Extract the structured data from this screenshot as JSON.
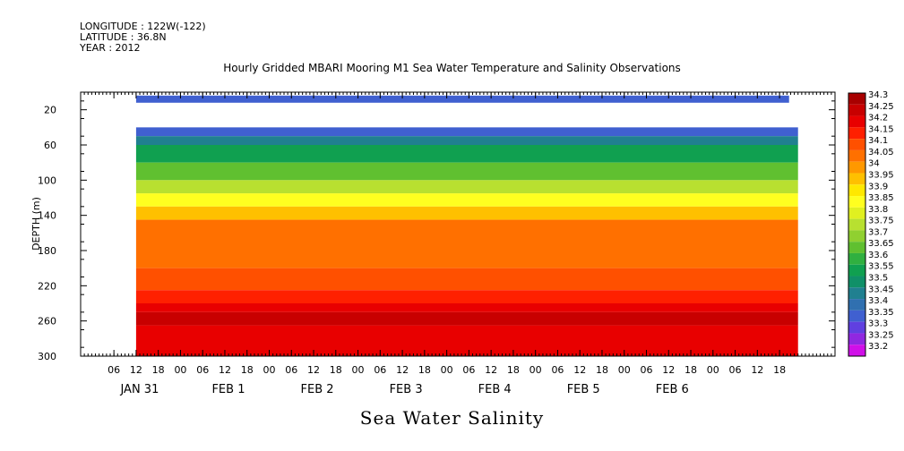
{
  "meta": {
    "longitude": "LONGITUDE : 122W(-122)",
    "latitude": "LATITUDE : 36.8N",
    "year": "YEAR : 2012"
  },
  "chart_data": {
    "type": "heatmap",
    "title": "Hourly Gridded MBARI Mooring M1 Sea Water Temperature and Salinity Observations",
    "bottom_title": "Sea Water Salinity",
    "ylabel": "DEPTH (m)",
    "ylim": [
      300,
      0
    ],
    "y_ticks": [
      20,
      60,
      100,
      140,
      180,
      220,
      260,
      300
    ],
    "x_tick_labels": [
      "06",
      "12",
      "18",
      "00",
      "06",
      "12",
      "18",
      "00",
      "06",
      "12",
      "18",
      "00",
      "06",
      "12",
      "18",
      "00",
      "06",
      "12",
      "18",
      "00",
      "06",
      "12",
      "18",
      "00",
      "06",
      "12",
      "18",
      "00",
      "06",
      "12",
      "18"
    ],
    "day_labels": [
      "JAN 31",
      "FEB  1",
      "FEB  2",
      "FEB  3",
      "FEB  4",
      "FEB  5",
      "FEB  6"
    ],
    "time_hours_from_jan31_00": [
      12,
      191
    ],
    "colorbar": {
      "levels": [
        "34.3",
        "34.25",
        "34.2",
        "34.15",
        "34.1",
        "34.05",
        "34",
        "33.95",
        "33.9",
        "33.85",
        "33.8",
        "33.75",
        "33.7",
        "33.65",
        "33.6",
        "33.55",
        "33.5",
        "33.45",
        "33.4",
        "33.35",
        "33.3",
        "33.25",
        "33.2"
      ],
      "colors": [
        "#a80000",
        "#c80000",
        "#e80000",
        "#ff2000",
        "#ff5000",
        "#ff7000",
        "#ff9800",
        "#ffc000",
        "#ffe800",
        "#ffff20",
        "#e0f020",
        "#b8e030",
        "#90d030",
        "#60c030",
        "#30b040",
        "#10a050",
        "#109068",
        "#208090",
        "#3070b0",
        "#4060d0",
        "#6040e0",
        "#9028e0",
        "#d010e8"
      ]
    },
    "profile": [
      {
        "depth": [
          40,
          50
        ],
        "salinity": 33.35
      },
      {
        "depth": [
          50,
          60
        ],
        "salinity": 33.45
      },
      {
        "depth": [
          60,
          80
        ],
        "salinity": 33.55
      },
      {
        "depth": [
          80,
          100
        ],
        "salinity": 33.65
      },
      {
        "depth": [
          100,
          115
        ],
        "salinity": 33.75
      },
      {
        "depth": [
          115,
          130
        ],
        "salinity": 33.85
      },
      {
        "depth": [
          130,
          145
        ],
        "salinity": 33.95
      },
      {
        "depth": [
          145,
          200
        ],
        "salinity": 34.05
      },
      {
        "depth": [
          200,
          225
        ],
        "salinity": 34.1
      },
      {
        "depth": [
          225,
          240
        ],
        "salinity": 34.15
      },
      {
        "depth": [
          240,
          250
        ],
        "salinity": 34.2
      },
      {
        "depth": [
          250,
          265
        ],
        "salinity": 34.25
      },
      {
        "depth": [
          265,
          300
        ],
        "salinity": 34.2
      }
    ],
    "surface_sensor_depth_m": 12,
    "surface_sensor_salinity": 33.35
  }
}
